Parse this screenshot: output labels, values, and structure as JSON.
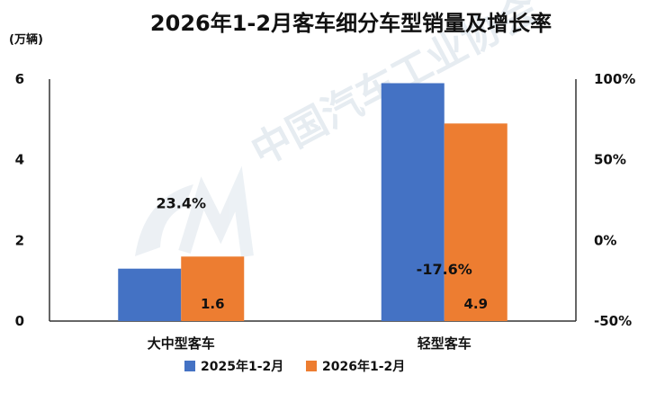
{
  "chart_data": {
    "type": "bar",
    "title": "2026年1-2月客车细分车型销量及增长率",
    "ylabel": "(万辆)",
    "categories": [
      "大中型客车",
      "轻型客车"
    ],
    "series": [
      {
        "name": "2025年1-2月",
        "color": "#4472C4",
        "values": [
          1.3,
          5.9
        ]
      },
      {
        "name": "2026年1-2月",
        "color": "#ED7D31",
        "values": [
          1.6,
          4.9
        ]
      }
    ],
    "data_labels": [
      "1.6",
      "4.9"
    ],
    "growth_rates": [
      23.4,
      -17.6
    ],
    "growth_labels": [
      "23.4%",
      "-17.6%"
    ],
    "growth_colors": [
      "#111111",
      "#E0202E"
    ],
    "ylim": [
      0,
      6
    ],
    "yticks": [
      "0",
      "2",
      "4",
      "6"
    ],
    "y2lim": [
      -50,
      100
    ],
    "y2ticks": [
      "-50%",
      "0%",
      "50%",
      "100%"
    ],
    "grid": false,
    "legend_position": "bottom"
  },
  "watermark": {
    "text": "中国汽车工业协会",
    "logo": "CAAM"
  }
}
